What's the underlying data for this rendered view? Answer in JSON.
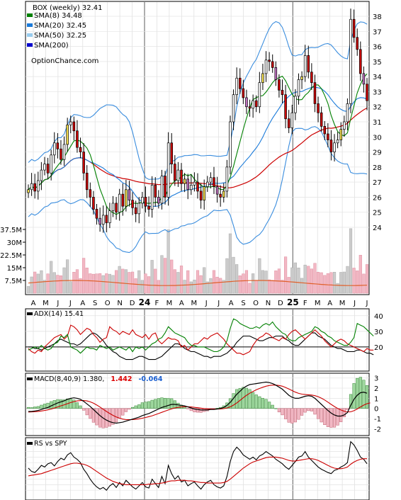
{
  "chart_data": [
    {
      "type": "candlestick",
      "panel": "price",
      "title": "BOX (weekly) 32.41",
      "watermark": "OptionChance.com",
      "legend": [
        {
          "label": "SMA(8) 34.48",
          "color": "#008000"
        },
        {
          "label": "SMA(20) 32.45",
          "color": "#1a7ad9"
        },
        {
          "label": "SMA(50) 32.25",
          "color": "#99ccee"
        },
        {
          "label": "SMA(200)",
          "color": "#0000cc"
        }
      ],
      "x_tick_labels": [
        "A",
        "M",
        "J",
        "J",
        "A",
        "S",
        "O",
        "N",
        "D",
        "24",
        "F",
        "M",
        "A",
        "M",
        "J",
        "J",
        "A",
        "S",
        "O",
        "N",
        "D",
        "25",
        "F",
        "M",
        "A",
        "M",
        "J",
        "J"
      ],
      "y_ticks": [
        24,
        25,
        26,
        27,
        28,
        29,
        30,
        31,
        32,
        33,
        34,
        35,
        36,
        37,
        38
      ],
      "ylim": [
        23.2,
        38.8
      ],
      "close": [
        26.5,
        26.9,
        26.4,
        27.1,
        27.8,
        28.2,
        27.6,
        28.8,
        29.6,
        29.2,
        28.5,
        29.5,
        30.8,
        31.0,
        30.4,
        29.3,
        29.0,
        27.6,
        26.5,
        26.0,
        25.2,
        24.6,
        24.2,
        24.8,
        24.3,
        25.1,
        25.6,
        25.0,
        26.2,
        25.4,
        26.5,
        25.8,
        25.3,
        24.9,
        25.6,
        26.0,
        25.4,
        25.2,
        26.8,
        26.0,
        25.6,
        27.4,
        26.0,
        29.6,
        28.2,
        27.1,
        27.8,
        26.9,
        27.2,
        26.5,
        26.8,
        27.0,
        26.4,
        25.8,
        26.7,
        27.0,
        27.3,
        26.7,
        26.2,
        26.0,
        26.4,
        28.0,
        31.0,
        32.8,
        33.9,
        33.2,
        32.6,
        32.0,
        31.9,
        32.4,
        32.0,
        33.6,
        34.2,
        35.1,
        35.0,
        34.6,
        33.8,
        33.1,
        32.8,
        31.2,
        30.6,
        31.6,
        32.7,
        33.8,
        34.0,
        35.4,
        34.3,
        33.6,
        32.2,
        31.6,
        30.7,
        30.2,
        29.8,
        29.0,
        29.6,
        29.8,
        30.5,
        31.0,
        32.2,
        37.8,
        36.6,
        35.8,
        34.2,
        33.5,
        32.4
      ],
      "volume_y_ticks": [
        "37.5M",
        "30M",
        "22.5M",
        "15M",
        "7.5M"
      ],
      "volume_ylim": [
        0,
        40
      ]
    },
    {
      "type": "line",
      "panel": "ADX",
      "legend_label": "ADX(14) 15.41",
      "y_ticks": [
        20,
        30,
        40
      ],
      "ylim": [
        5,
        44
      ],
      "series": [
        {
          "color": "#000000",
          "values": [
            20,
            20,
            19,
            19,
            18,
            19,
            20,
            21,
            22,
            24,
            25,
            24,
            23,
            22,
            22,
            21,
            22,
            24,
            26,
            28,
            29,
            28,
            26,
            24,
            21,
            19,
            17,
            16,
            14,
            13,
            12,
            12,
            12,
            13,
            14,
            14,
            13,
            12,
            12,
            12,
            13,
            14,
            16,
            18,
            20,
            22,
            22,
            21,
            19,
            18,
            17,
            17,
            16,
            15,
            14,
            14,
            13,
            14,
            14,
            14,
            15,
            16,
            18,
            20,
            23,
            25,
            27,
            27,
            27,
            26,
            25,
            24,
            24,
            25,
            26,
            26,
            27,
            27,
            27,
            25,
            24,
            22,
            21,
            21,
            23,
            25,
            27,
            29,
            29,
            27,
            26,
            25,
            23,
            21,
            20,
            19,
            19,
            18,
            17,
            17,
            17,
            18,
            18,
            17,
            16,
            16,
            15
          ]
        },
        {
          "color": "#cc0000",
          "values": [
            19,
            17,
            16,
            18,
            17,
            20,
            22,
            24,
            26,
            27,
            28,
            25,
            27,
            34,
            33,
            31,
            28,
            30,
            32,
            31,
            28,
            26,
            23,
            25,
            26,
            33,
            31,
            30,
            28,
            30,
            29,
            28,
            31,
            28,
            27,
            26,
            28,
            25,
            28,
            29,
            24,
            22,
            24,
            26,
            25,
            25,
            24,
            20,
            21,
            18,
            20,
            22,
            22,
            24,
            26,
            25,
            27,
            28,
            29,
            27,
            25,
            22,
            20,
            18,
            16,
            16,
            15,
            16,
            17,
            21,
            24,
            26,
            27,
            29,
            28,
            26,
            25,
            24,
            26,
            25,
            28,
            30,
            31,
            29,
            27,
            25,
            27,
            29,
            31,
            29,
            27,
            24,
            22,
            20,
            22,
            24,
            25,
            24,
            22,
            21,
            20,
            19,
            18,
            17,
            19,
            18,
            18
          ]
        },
        {
          "color": "#008000",
          "values": [
            18,
            19,
            20,
            19,
            21,
            19,
            18,
            19,
            22,
            23,
            27,
            26,
            28,
            20,
            19,
            18,
            16,
            18,
            20,
            19,
            19,
            18,
            21,
            20,
            19,
            20,
            18,
            19,
            20,
            19,
            18,
            20,
            17,
            20,
            19,
            20,
            18,
            20,
            22,
            23,
            25,
            26,
            29,
            33,
            31,
            29,
            28,
            27,
            26,
            23,
            21,
            21,
            20,
            20,
            20,
            19,
            18,
            17,
            17,
            18,
            20,
            24,
            32,
            38,
            37,
            35,
            34,
            33,
            32,
            32,
            33,
            32,
            34,
            35,
            34,
            36,
            33,
            31,
            29,
            28,
            25,
            24,
            24,
            26,
            27,
            28,
            29,
            30,
            33,
            32,
            30,
            29,
            27,
            26,
            24,
            23,
            22,
            21,
            21,
            23,
            26,
            35,
            34,
            33,
            31,
            29,
            27
          ]
        }
      ]
    },
    {
      "type": "bar+line",
      "panel": "MACD",
      "legend_label": "MACD(8,40,9) 1.380,",
      "legend_value_red": "1.442",
      "legend_value_blue": "-0.064",
      "y_ticks": [
        3,
        2,
        1,
        0,
        -1,
        -2
      ],
      "ylim": [
        -2.6,
        3.4
      ],
      "macd": [
        -0.3,
        -0.3,
        -0.25,
        -0.2,
        -0.1,
        0.0,
        0.1,
        0.25,
        0.4,
        0.55,
        0.65,
        0.75,
        0.9,
        1.0,
        1.05,
        1.0,
        0.9,
        0.7,
        0.45,
        0.2,
        -0.1,
        -0.4,
        -0.7,
        -0.95,
        -1.15,
        -1.3,
        -1.4,
        -1.45,
        -1.4,
        -1.35,
        -1.25,
        -1.15,
        -1.05,
        -0.95,
        -0.85,
        -0.7,
        -0.6,
        -0.5,
        -0.35,
        -0.2,
        -0.05,
        0.1,
        0.2,
        0.3,
        0.4,
        0.4,
        0.35,
        0.3,
        0.25,
        0.15,
        0.05,
        -0.05,
        -0.1,
        -0.15,
        -0.15,
        -0.15,
        -0.1,
        -0.1,
        -0.05,
        0.0,
        0.1,
        0.3,
        0.6,
        1.0,
        1.4,
        1.7,
        2.0,
        2.2,
        2.35,
        2.4,
        2.45,
        2.5,
        2.55,
        2.6,
        2.55,
        2.45,
        2.3,
        2.1,
        1.9,
        1.6,
        1.3,
        1.1,
        1.0,
        1.0,
        1.1,
        1.2,
        1.25,
        1.2,
        1.0,
        0.7,
        0.4,
        0.1,
        -0.2,
        -0.45,
        -0.65,
        -0.75,
        -0.75,
        -0.65,
        -0.4,
        0.3,
        0.9,
        1.3,
        1.55,
        1.6,
        1.5
      ],
      "signal": [
        -0.35,
        -0.34,
        -0.32,
        -0.29,
        -0.25,
        -0.2,
        -0.14,
        -0.06,
        0.04,
        0.15,
        0.26,
        0.36,
        0.47,
        0.58,
        0.67,
        0.74,
        0.78,
        0.78,
        0.74,
        0.65,
        0.52,
        0.34,
        0.14,
        -0.08,
        -0.3,
        -0.5,
        -0.68,
        -0.84,
        -0.96,
        -1.05,
        -1.1,
        -1.11,
        -1.1,
        -1.07,
        -1.02,
        -0.96,
        -0.89,
        -0.81,
        -0.72,
        -0.61,
        -0.5,
        -0.38,
        -0.26,
        -0.15,
        -0.04,
        0.05,
        0.11,
        0.15,
        0.17,
        0.17,
        0.15,
        0.11,
        0.07,
        0.03,
        -0.01,
        -0.04,
        -0.05,
        -0.06,
        -0.06,
        -0.05,
        -0.02,
        0.05,
        0.16,
        0.33,
        0.55,
        0.8,
        1.05,
        1.29,
        1.5,
        1.68,
        1.84,
        1.97,
        2.09,
        2.19,
        2.26,
        2.3,
        2.3,
        2.26,
        2.19,
        2.07,
        1.92,
        1.76,
        1.61,
        1.49,
        1.41,
        1.37,
        1.35,
        1.32,
        1.26,
        1.16,
        1.01,
        0.83,
        0.62,
        0.4,
        0.19,
        0.0,
        -0.15,
        -0.27,
        -0.34,
        -0.33,
        -0.22,
        -0.05,
        0.15,
        0.33,
        0.47,
        0.55
      ]
    },
    {
      "type": "line",
      "panel": "RS",
      "legend_label": "RS vs SPY",
      "series": [
        {
          "color": "#000000",
          "values": [
            0.5,
            0.44,
            0.42,
            0.48,
            0.55,
            0.52,
            0.58,
            0.6,
            0.54,
            0.62,
            0.68,
            0.65,
            0.74,
            0.78,
            0.7,
            0.66,
            0.6,
            0.48,
            0.4,
            0.3,
            0.22,
            0.16,
            0.12,
            0.15,
            0.1,
            0.18,
            0.22,
            0.15,
            0.24,
            0.18,
            0.28,
            0.22,
            0.16,
            0.12,
            0.18,
            0.24,
            0.16,
            0.14,
            0.3,
            0.22,
            0.15,
            0.35,
            0.22,
            0.55,
            0.4,
            0.3,
            0.36,
            0.25,
            0.28,
            0.18,
            0.22,
            0.25,
            0.18,
            0.12,
            0.2,
            0.25,
            0.28,
            0.2,
            0.16,
            0.14,
            0.18,
            0.35,
            0.62,
            0.8,
            0.88,
            0.82,
            0.74,
            0.7,
            0.66,
            0.7,
            0.65,
            0.72,
            0.75,
            0.8,
            0.76,
            0.72,
            0.66,
            0.62,
            0.58,
            0.52,
            0.48,
            0.55,
            0.62,
            0.7,
            0.72,
            0.8,
            0.7,
            0.64,
            0.58,
            0.52,
            0.48,
            0.45,
            0.42,
            0.4,
            0.46,
            0.48,
            0.52,
            0.55,
            0.6,
            0.98,
            0.92,
            0.82,
            0.7,
            0.66,
            0.58
          ]
        },
        {
          "color": "#cc0000",
          "values": [
            0.36,
            0.37,
            0.38,
            0.39,
            0.4,
            0.42,
            0.44,
            0.46,
            0.48,
            0.5,
            0.52,
            0.54,
            0.56,
            0.58,
            0.59,
            0.59,
            0.58,
            0.57,
            0.55,
            0.52,
            0.48,
            0.44,
            0.4,
            0.36,
            0.32,
            0.29,
            0.26,
            0.24,
            0.22,
            0.21,
            0.2,
            0.2,
            0.2,
            0.2,
            0.2,
            0.2,
            0.2,
            0.21,
            0.21,
            0.22,
            0.22,
            0.23,
            0.24,
            0.26,
            0.27,
            0.27,
            0.28,
            0.28,
            0.28,
            0.27,
            0.27,
            0.26,
            0.25,
            0.24,
            0.24,
            0.23,
            0.23,
            0.23,
            0.23,
            0.23,
            0.24,
            0.26,
            0.3,
            0.35,
            0.4,
            0.45,
            0.5,
            0.54,
            0.58,
            0.61,
            0.63,
            0.65,
            0.67,
            0.69,
            0.7,
            0.7,
            0.7,
            0.69,
            0.68,
            0.66,
            0.64,
            0.63,
            0.63,
            0.64,
            0.65,
            0.66,
            0.67,
            0.67,
            0.66,
            0.64,
            0.61,
            0.58,
            0.55,
            0.52,
            0.5,
            0.49,
            0.49,
            0.5,
            0.52,
            0.57,
            0.61,
            0.64,
            0.66,
            0.67,
            0.67
          ]
        }
      ]
    }
  ]
}
